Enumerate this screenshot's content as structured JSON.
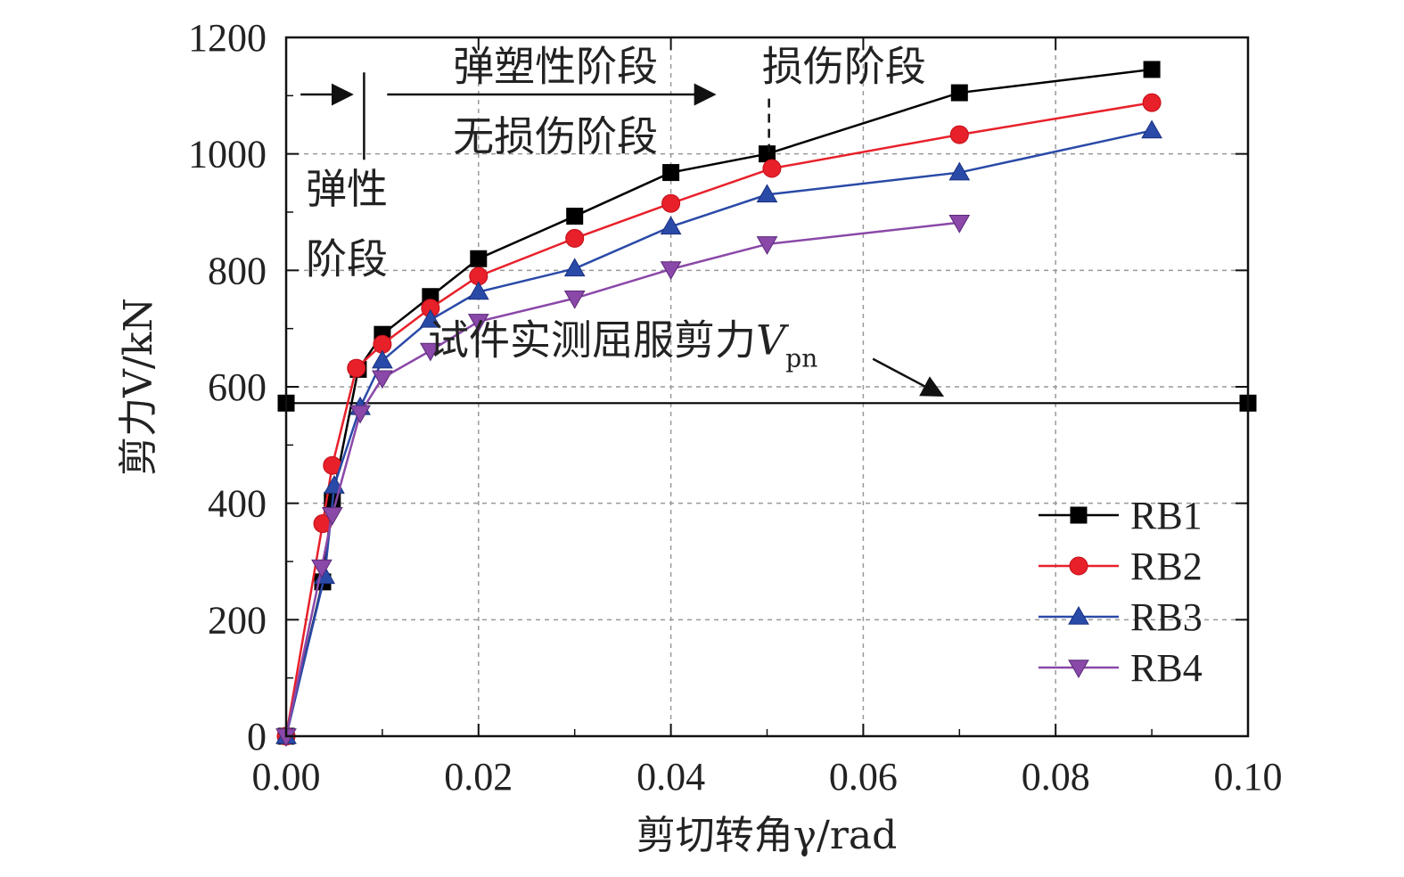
{
  "chart_data": {
    "type": "line",
    "xlabel": "剪切转角γ/rad",
    "ylabel": "剪力V/kN",
    "xlim": [
      0,
      0.1
    ],
    "ylim": [
      0,
      1200
    ],
    "x_ticks": [
      "0.00",
      "0.02",
      "0.04",
      "0.06",
      "0.08",
      "0.10"
    ],
    "y_ticks": [
      "0",
      "200",
      "400",
      "600",
      "800",
      "1000",
      "1200"
    ],
    "grid": true,
    "legend": "bottom-right",
    "series": [
      {
        "name": "RB1",
        "color": "#000000",
        "marker": "square",
        "points": [
          [
            0,
            0
          ],
          [
            0.0038,
            265
          ],
          [
            0.0048,
            405
          ],
          [
            0.0075,
            630
          ],
          [
            0.01,
            690
          ],
          [
            0.015,
            755
          ],
          [
            0.02,
            820
          ],
          [
            0.03,
            893
          ],
          [
            0.04,
            968
          ],
          [
            0.05,
            1000
          ],
          [
            0.07,
            1105
          ],
          [
            0.09,
            1145
          ]
        ]
      },
      {
        "name": "RB2",
        "color": "#e8202a",
        "marker": "circle",
        "points": [
          [
            0,
            0
          ],
          [
            0.0038,
            365
          ],
          [
            0.0048,
            465
          ],
          [
            0.0073,
            632
          ],
          [
            0.01,
            673
          ],
          [
            0.015,
            735
          ],
          [
            0.02,
            790
          ],
          [
            0.03,
            855
          ],
          [
            0.04,
            915
          ],
          [
            0.0505,
            975
          ],
          [
            0.07,
            1033
          ],
          [
            0.09,
            1088
          ]
        ]
      },
      {
        "name": "RB3",
        "color": "#2a4aa8",
        "marker": "triangle-up",
        "points": [
          [
            0,
            0
          ],
          [
            0.004,
            275
          ],
          [
            0.005,
            430
          ],
          [
            0.0077,
            565
          ],
          [
            0.01,
            645
          ],
          [
            0.015,
            715
          ],
          [
            0.02,
            763
          ],
          [
            0.03,
            803
          ],
          [
            0.04,
            875
          ],
          [
            0.05,
            930
          ],
          [
            0.07,
            968
          ],
          [
            0.09,
            1040
          ]
        ]
      },
      {
        "name": "RB4",
        "color": "#8a48a8",
        "marker": "triangle-down",
        "points": [
          [
            0,
            0
          ],
          [
            0.0037,
            290
          ],
          [
            0.0048,
            380
          ],
          [
            0.0077,
            555
          ],
          [
            0.01,
            615
          ],
          [
            0.015,
            662
          ],
          [
            0.02,
            712
          ],
          [
            0.03,
            752
          ],
          [
            0.04,
            802
          ],
          [
            0.05,
            845
          ],
          [
            0.07,
            882
          ]
        ]
      },
      {
        "name": "",
        "color": "#000000",
        "marker": "square",
        "points": [
          [
            0,
            572
          ],
          [
            0.1,
            572
          ]
        ]
      }
    ],
    "annotations": [
      {
        "text": "弹塑性阶段",
        "x": 0.028,
        "y": 1150
      },
      {
        "text": "损伤阶段",
        "x": 0.058,
        "y": 1150
      },
      {
        "text": "无损伤阶段",
        "x": 0.028,
        "y": 1030
      },
      {
        "text": "弹性",
        "x": 0.0063,
        "y": 940
      },
      {
        "text": "阶段",
        "x": 0.0063,
        "y": 820
      },
      {
        "text": "试件实测屈服剪力",
        "subscript_symbol": "V",
        "subscript": "pn",
        "x": 0.035,
        "y": 680
      }
    ]
  }
}
